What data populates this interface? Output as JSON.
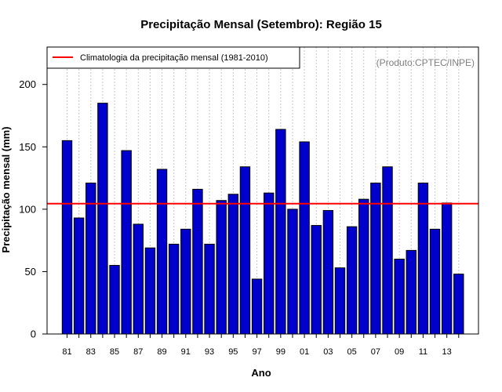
{
  "chart_data": {
    "type": "bar",
    "title": "Precipitação Mensal (Setembro): Região 15",
    "xlabel": "Ano",
    "ylabel": "Precipitação mensal (mm)",
    "ylim": [
      0,
      230
    ],
    "yticks": [
      0,
      50,
      100,
      150,
      200
    ],
    "categories": [
      "81",
      "82",
      "83",
      "84",
      "85",
      "86",
      "87",
      "88",
      "89",
      "90",
      "91",
      "92",
      "93",
      "94",
      "95",
      "96",
      "97",
      "98",
      "99",
      "00",
      "01",
      "02",
      "03",
      "04",
      "05",
      "06",
      "07",
      "08",
      "09",
      "10",
      "11",
      "12",
      "13",
      "14"
    ],
    "xtick_labels": [
      "81",
      "83",
      "85",
      "87",
      "89",
      "91",
      "93",
      "95",
      "97",
      "99",
      "01",
      "03",
      "05",
      "07",
      "09",
      "11",
      "13"
    ],
    "values": [
      155,
      93,
      121,
      185,
      55,
      147,
      88,
      69,
      132,
      72,
      84,
      116,
      72,
      107,
      112,
      134,
      44,
      113,
      164,
      100,
      154,
      87,
      99,
      53,
      86,
      108,
      121,
      134,
      60,
      67,
      121,
      84,
      105,
      48
    ],
    "bar_color": "#0000cd",
    "reference_line": {
      "value": 104.5,
      "color": "#ff0000",
      "label": "Climatologia da precipitação mensal (1981-2010)"
    },
    "credit": "(Produto:CPTEC/INPE)",
    "legend_position": "top-left",
    "grid": "vertical-dotted"
  }
}
